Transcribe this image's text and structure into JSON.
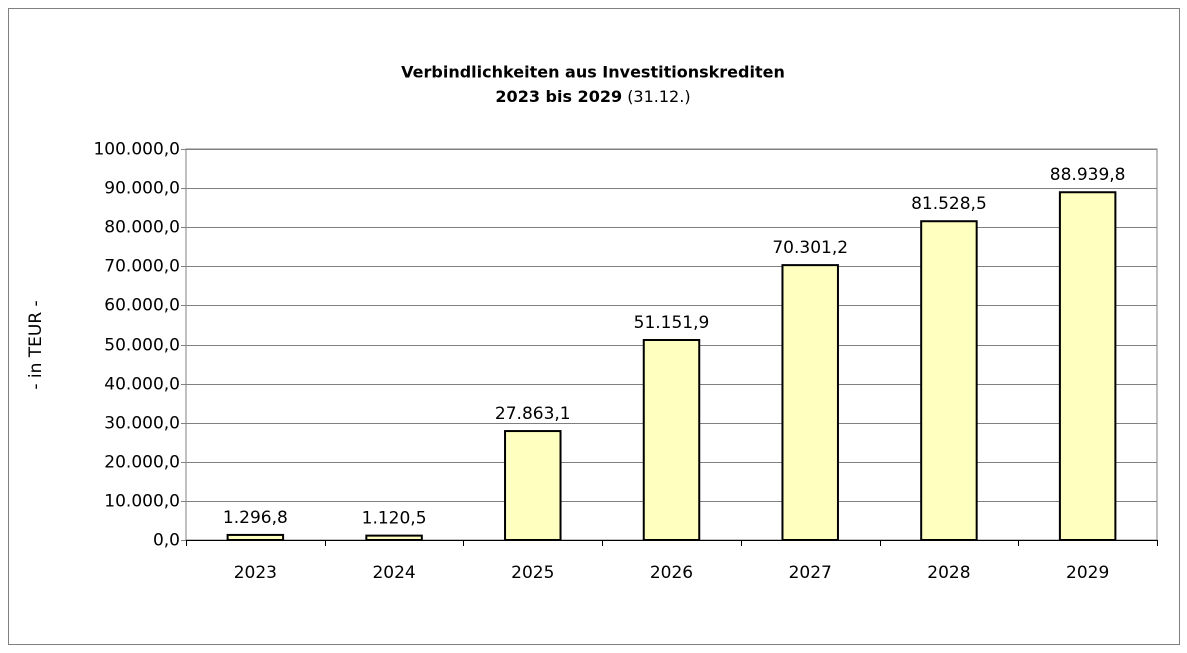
{
  "chart_data": {
    "type": "bar",
    "title": "Verbindlichkeiten aus Investitionskrediten",
    "subtitle": "2023 bis 2029",
    "subtitle_note": "(31.12.)",
    "y_label": "- in TEUR -",
    "categories": [
      "2023",
      "2024",
      "2025",
      "2026",
      "2027",
      "2028",
      "2029"
    ],
    "values": [
      1296.8,
      1120.5,
      27863.1,
      51151.9,
      70301.2,
      81528.5,
      88939.8
    ],
    "value_labels": [
      "1.296,8",
      "1.120,5",
      "27.863,1",
      "51.151,9",
      "70.301,2",
      "81.528,5",
      "88.939,8"
    ],
    "color": "#ffffc0",
    "ylim": [
      0,
      100000
    ],
    "yticks": [
      {
        "value": 0,
        "label": "0,0"
      },
      {
        "value": 10000,
        "label": "10.000,0"
      },
      {
        "value": 20000,
        "label": "20.000,0"
      },
      {
        "value": 30000,
        "label": "30.000,0"
      },
      {
        "value": 40000,
        "label": "40.000,0"
      },
      {
        "value": 50000,
        "label": "50.000,0"
      },
      {
        "value": 60000,
        "label": "60.000,0"
      },
      {
        "value": 70000,
        "label": "70.000,0"
      },
      {
        "value": 80000,
        "label": "80.000,0"
      },
      {
        "value": 90000,
        "label": "90.000,0"
      },
      {
        "value": 100000,
        "label": "100.000,0"
      }
    ],
    "grid": true
  }
}
